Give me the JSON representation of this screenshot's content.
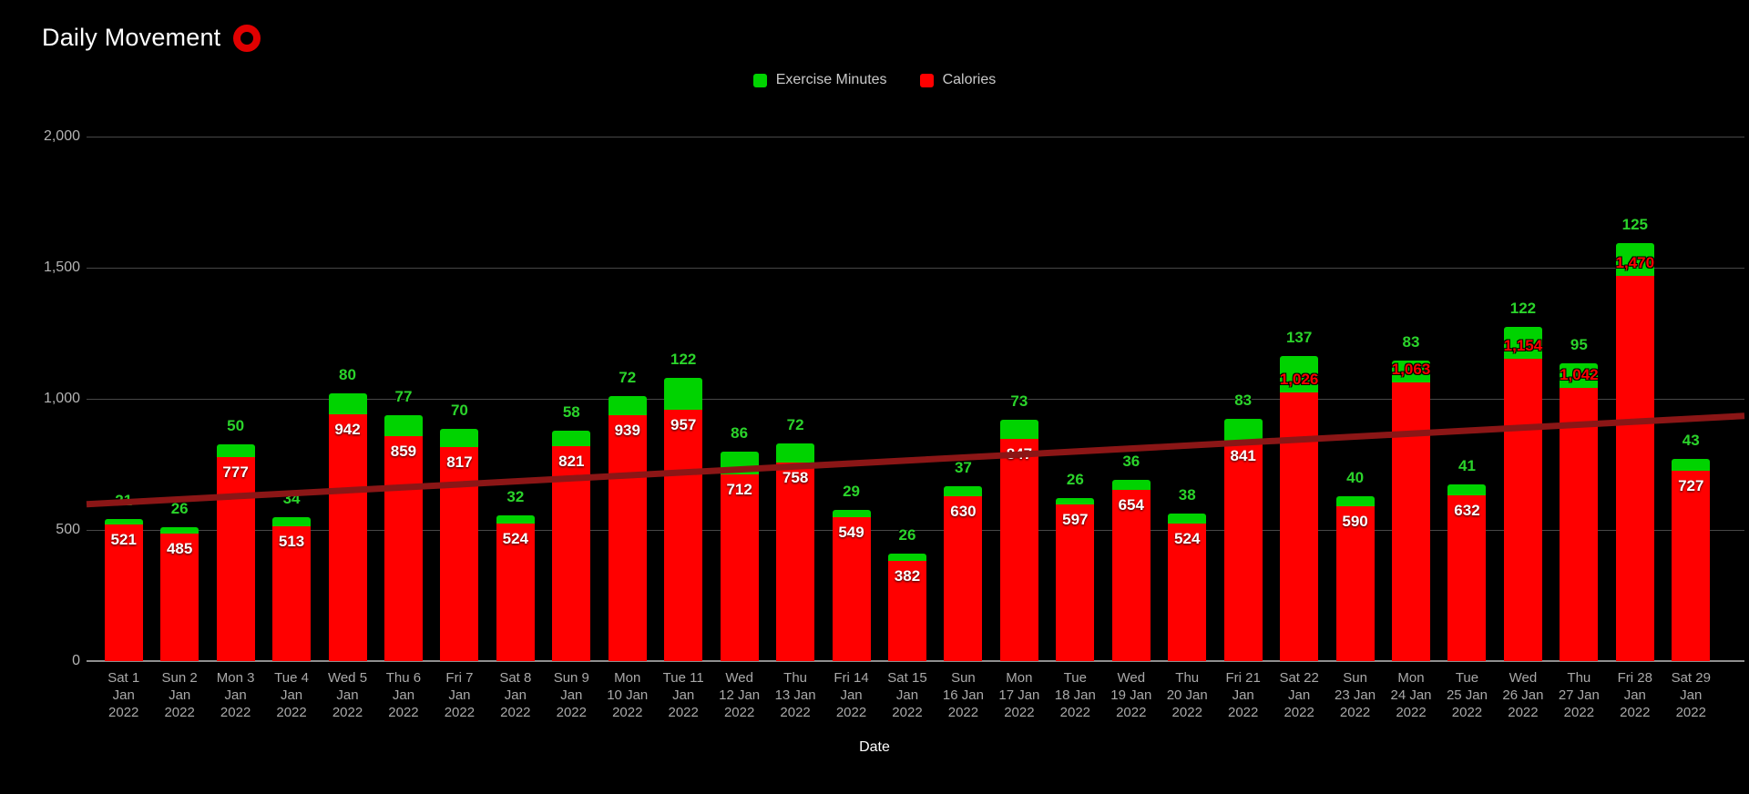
{
  "title": "Daily Movement",
  "legend": [
    {
      "label": "Exercise Minutes",
      "color": "#00d300"
    },
    {
      "label": "Calories",
      "color": "#ff0000"
    }
  ],
  "colors": {
    "background": "#000000",
    "calories_bar": "#ff0000",
    "exercise_bar": "#00d300",
    "exercise_label": "#2bd42b",
    "calories_outside_label": "#ff0000",
    "trend_line": "#8b1616",
    "grid_line": "#474747",
    "axis_line": "#8f8f8f",
    "tick_text": "#b4b4b4",
    "title_text": "#ffffff",
    "ring_icon": "#e10000"
  },
  "chart_data": {
    "type": "bar",
    "stacked": true,
    "title": "Daily Movement",
    "xlabel": "Date",
    "ylabel": "",
    "ylim": [
      0,
      2000
    ],
    "yticks": [
      0,
      500,
      1000,
      1500,
      2000
    ],
    "ytick_labels": [
      "0",
      "500",
      "1,000",
      "1,500",
      "2,000"
    ],
    "grid": true,
    "legend_position": "top",
    "categories": [
      [
        "Sat 1",
        "Jan",
        "2022"
      ],
      [
        "Sun 2",
        "Jan",
        "2022"
      ],
      [
        "Mon 3",
        "Jan",
        "2022"
      ],
      [
        "Tue 4",
        "Jan",
        "2022"
      ],
      [
        "Wed 5",
        "Jan",
        "2022"
      ],
      [
        "Thu 6",
        "Jan",
        "2022"
      ],
      [
        "Fri 7",
        "Jan",
        "2022"
      ],
      [
        "Sat 8",
        "Jan",
        "2022"
      ],
      [
        "Sun 9",
        "Jan",
        "2022"
      ],
      [
        "Mon",
        "10 Jan",
        "2022"
      ],
      [
        "Tue 11",
        "Jan",
        "2022"
      ],
      [
        "Wed",
        "12 Jan",
        "2022"
      ],
      [
        "Thu",
        "13 Jan",
        "2022"
      ],
      [
        "Fri 14",
        "Jan",
        "2022"
      ],
      [
        "Sat 15",
        "Jan",
        "2022"
      ],
      [
        "Sun",
        "16 Jan",
        "2022"
      ],
      [
        "Mon",
        "17 Jan",
        "2022"
      ],
      [
        "Tue",
        "18 Jan",
        "2022"
      ],
      [
        "Wed",
        "19 Jan",
        "2022"
      ],
      [
        "Thu",
        "20 Jan",
        "2022"
      ],
      [
        "Fri 21",
        "Jan",
        "2022"
      ],
      [
        "Sat 22",
        "Jan",
        "2022"
      ],
      [
        "Sun",
        "23 Jan",
        "2022"
      ],
      [
        "Mon",
        "24 Jan",
        "2022"
      ],
      [
        "Tue",
        "25 Jan",
        "2022"
      ],
      [
        "Wed",
        "26 Jan",
        "2022"
      ],
      [
        "Thu",
        "27 Jan",
        "2022"
      ],
      [
        "Fri 28",
        "Jan",
        "2022"
      ],
      [
        "Sat 29",
        "Jan",
        "2022"
      ]
    ],
    "series": [
      {
        "name": "Calories",
        "color": "#ff0000",
        "values": [
          521,
          485,
          777,
          513,
          942,
          859,
          817,
          524,
          821,
          939,
          957,
          712,
          758,
          549,
          382,
          630,
          847,
          597,
          654,
          524,
          841,
          1026,
          590,
          1063,
          632,
          1154,
          1042,
          1470,
          727
        ]
      },
      {
        "name": "Exercise Minutes",
        "color": "#00d300",
        "values": [
          21,
          26,
          50,
          34,
          80,
          77,
          70,
          32,
          58,
          72,
          122,
          86,
          72,
          29,
          26,
          37,
          73,
          26,
          36,
          38,
          83,
          137,
          40,
          83,
          41,
          122,
          95,
          125,
          43
        ]
      }
    ],
    "trend_line": {
      "name": "trend",
      "color": "#8b1616",
      "start_value": 598,
      "end_value": 935
    }
  }
}
